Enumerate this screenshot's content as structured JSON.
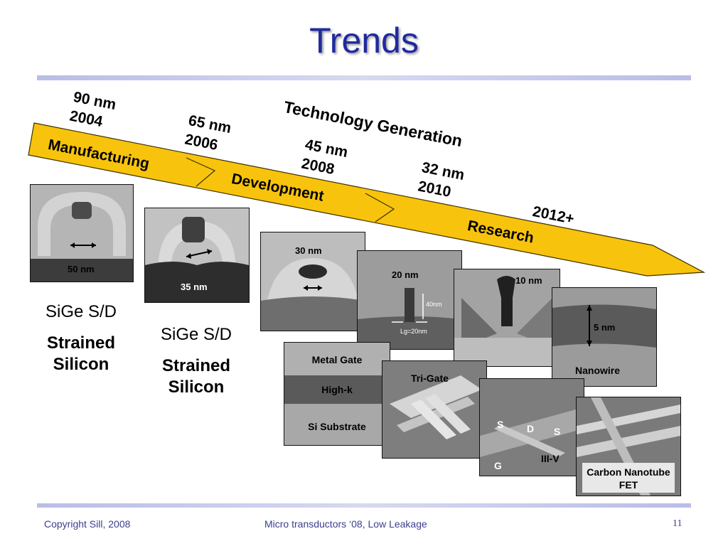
{
  "title": "Trends",
  "axis_title": "Technology Generation",
  "generations": [
    {
      "node": "90 nm",
      "year": "2004"
    },
    {
      "node": "65 nm",
      "year": "2006"
    },
    {
      "node": "45 nm",
      "year": "2008"
    },
    {
      "node": "32 nm",
      "year": "2010"
    },
    {
      "node": "",
      "year": "2012+"
    }
  ],
  "stages": [
    "Manufacturing",
    "Development",
    "Research"
  ],
  "images": {
    "img90": "50 nm",
    "img65": "35 nm",
    "img45": "30 nm",
    "img32": "20 nm",
    "img22_top": "10 nm",
    "img22_bottom": "5 nm",
    "nanowire": "Nanowire",
    "stack": {
      "metal_gate": "Metal Gate",
      "high_k": "High-k",
      "si_substrate": "Si Substrate"
    },
    "trigate": "Tri-Gate",
    "iii_v": {
      "s1": "S",
      "d": "D",
      "s2": "S",
      "g": "G",
      "label": "III-V"
    },
    "cnt": "Carbon Nanotube FET",
    "inner_40nm": "40nm",
    "inner_lg": "Lg=20nm"
  },
  "features_90": [
    "SiGe S/D",
    "Strained Silicon"
  ],
  "features_65": [
    "SiGe S/D",
    "Strained Silicon"
  ],
  "footer": {
    "left": "Copyright Sill, 2008",
    "center": "Micro transductors ‘08, Low Leakage",
    "page": "11"
  }
}
